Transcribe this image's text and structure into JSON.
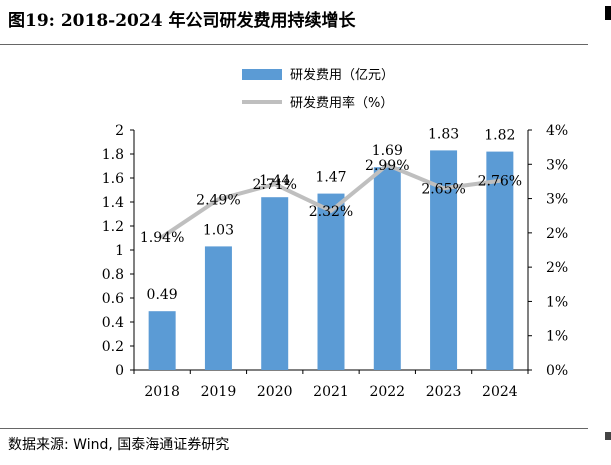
{
  "header": {
    "title": "图19:  2018-2024 年公司研发费用持续增长"
  },
  "footer": {
    "source": "数据来源:  Wind,  国泰海通证券研究"
  },
  "chart_data": {
    "type": "bar",
    "categories": [
      "2018",
      "2019",
      "2020",
      "2021",
      "2022",
      "2023",
      "2024"
    ],
    "series": [
      {
        "name": "研发费用（亿元）",
        "type": "bar",
        "axis": "left",
        "color": "#5b9bd5",
        "values": [
          0.49,
          1.03,
          1.44,
          1.47,
          1.69,
          1.83,
          1.82
        ],
        "labels": [
          "0.49",
          "1.03",
          "1.44",
          "1.47",
          "1.69",
          "1.83",
          "1.82"
        ]
      },
      {
        "name": "研发费用率（%）",
        "type": "line",
        "axis": "right",
        "color": "#bfbfbf",
        "values": [
          1.94,
          2.49,
          2.71,
          2.32,
          2.99,
          2.65,
          2.76
        ],
        "labels": [
          "1.94%",
          "2.49%",
          "2.71%",
          "2.32%",
          "2.99%",
          "2.65%",
          "2.76%"
        ]
      }
    ],
    "left_axis": {
      "ylim": [
        0,
        2
      ],
      "ticks": [
        0,
        0.2,
        0.4,
        0.6,
        0.8,
        1,
        1.2,
        1.4,
        1.6,
        1.8,
        2
      ],
      "tick_labels": [
        "0",
        "0.2",
        "0.4",
        "0.6",
        "0.8",
        "1",
        "1.2",
        "1.4",
        "1.6",
        "1.8",
        "2"
      ]
    },
    "right_axis": {
      "ylim": [
        0,
        3.5
      ],
      "ticks": [
        0,
        0.5,
        1,
        1.5,
        2,
        2.5,
        3,
        3.5
      ],
      "tick_labels": [
        "0%",
        "1%",
        "1%",
        "2%",
        "2%",
        "3%",
        "3%",
        "4%"
      ]
    },
    "legend_position": "top-center",
    "grid": false
  }
}
